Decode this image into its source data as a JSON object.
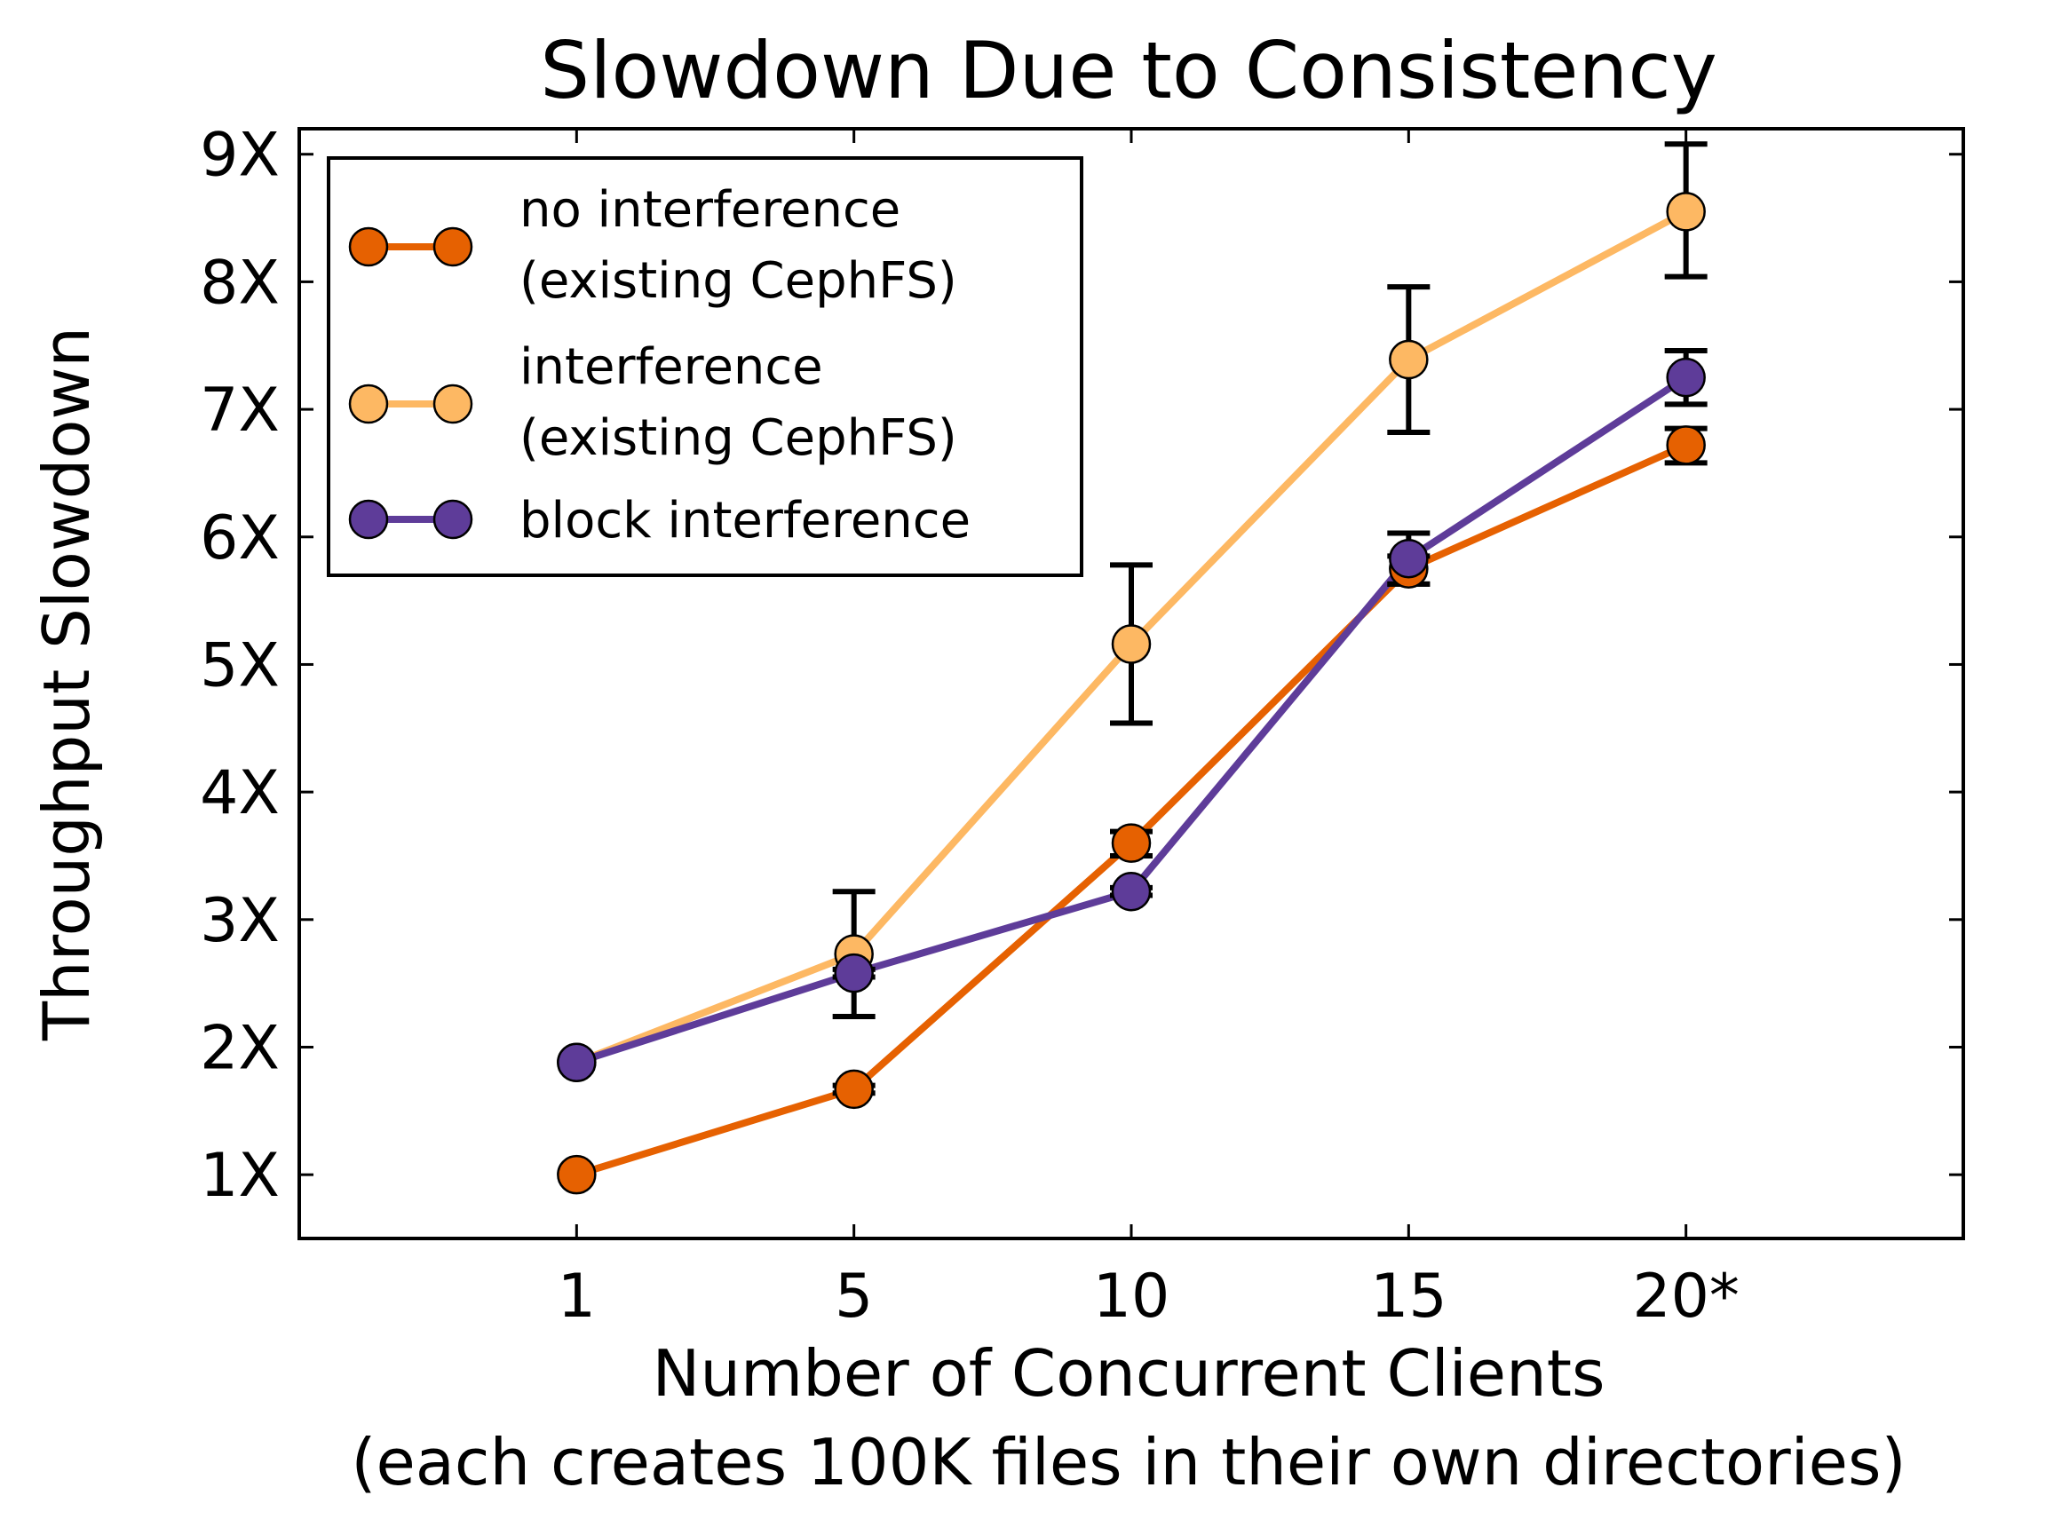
{
  "chart_data": {
    "type": "line",
    "title": "Slowdown Due to Consistency",
    "xlabel": "Number of Concurrent Clients",
    "xlabel_line2": "(each creates 100K files in their own directories)",
    "ylabel": "Throughput Slowdown",
    "categories": [
      "1",
      "5",
      "10",
      "15",
      "20*"
    ],
    "x_positions": [
      1,
      2,
      3,
      4,
      5
    ],
    "xlim": [
      0,
      6
    ],
    "ylim": [
      0.5,
      9.2
    ],
    "yticks": [
      1,
      2,
      3,
      4,
      5,
      6,
      7,
      8,
      9
    ],
    "ytick_labels": [
      "1X",
      "2X",
      "3X",
      "4X",
      "5X",
      "6X",
      "7X",
      "8X",
      "9X"
    ],
    "grid": false,
    "legend_position": "top-left",
    "series": [
      {
        "name": "no interference",
        "name_line2": "(existing CephFS)",
        "color": "#e66101",
        "values": [
          1.0,
          1.67,
          3.6,
          5.75,
          6.72
        ],
        "err_low": [
          1.0,
          1.64,
          3.5,
          5.63,
          6.58
        ],
        "err_high": [
          1.0,
          1.7,
          3.69,
          5.85,
          6.85
        ]
      },
      {
        "name": "interference",
        "name_line2": "(existing CephFS)",
        "color": "#fdb863",
        "values": [
          1.88,
          2.73,
          5.16,
          7.39,
          8.55
        ],
        "err_low": [
          1.88,
          2.24,
          4.54,
          6.82,
          8.04
        ],
        "err_high": [
          1.88,
          3.22,
          5.78,
          7.96,
          9.08
        ]
      },
      {
        "name": "block interference",
        "name_line2": "",
        "color": "#5e3c99",
        "values": [
          1.88,
          2.58,
          3.22,
          5.83,
          7.25
        ],
        "err_low": [
          1.88,
          2.55,
          3.19,
          5.63,
          7.04
        ],
        "err_high": [
          1.88,
          2.61,
          3.25,
          6.03,
          7.46
        ]
      }
    ]
  }
}
